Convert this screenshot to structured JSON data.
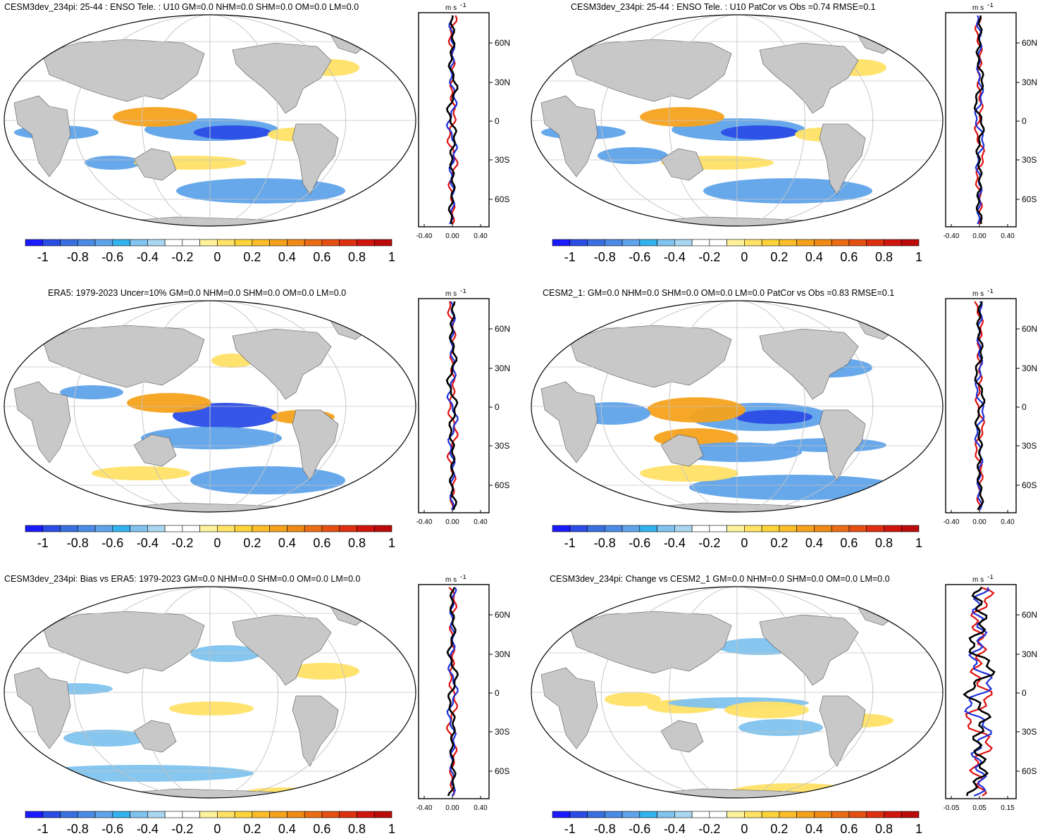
{
  "colorbar": {
    "colors": [
      "#1a1aff",
      "#2b4de6",
      "#3a6fe0",
      "#4b8be6",
      "#5fa3ea",
      "#32b2ee",
      "#7fc3ee",
      "#a9d6f0",
      "#ffffff",
      "#ffffff",
      "#fff29a",
      "#ffe266",
      "#fdd33b",
      "#fbbd2a",
      "#f5a21c",
      "#ef8a16",
      "#ea6c14",
      "#e44f12",
      "#de3010",
      "#d0140e",
      "#bb0a0a"
    ],
    "labels": [
      "-1",
      "-0.8",
      "-0.6",
      "-0.4",
      "-0.2",
      "0",
      "0.2",
      "0.4",
      "0.6",
      "0.8",
      "1"
    ]
  },
  "panels": [
    {
      "title": "CESM3dev_234pi: 25-44 : ENSO Tele. : U10 GM=0.0 NHM=0.0 SHM=0.0 OM=0.0 LM=0.0",
      "zonal": {
        "unit": "m s",
        "unit_exp": "-1",
        "xticks": [
          "-0.40",
          "0.00",
          "0.40"
        ],
        "yticks": [
          "60N",
          "30N",
          "0",
          "30S",
          "60S"
        ]
      }
    },
    {
      "title": "CESM3dev_234pi: 25-44 : ENSO Tele. : U10 PatCor vs Obs =0.74 RMSE=0.1",
      "zonal": {
        "unit": "m s",
        "unit_exp": "-1",
        "xticks": [
          "-0.40",
          "0.00",
          "0.40"
        ],
        "yticks": [
          "60N",
          "30N",
          "0",
          "30S",
          "60S"
        ]
      }
    },
    {
      "title": "ERA5: 1979-2023 Uncer=10% GM=0.0 NHM=0.0 SHM=0.0 OM=0.0 LM=0.0",
      "zonal": {
        "unit": "m s",
        "unit_exp": "-1",
        "xticks": [
          "-0.40",
          "0.00",
          "0.40"
        ],
        "yticks": [
          "60N",
          "30N",
          "0",
          "30S",
          "60S"
        ]
      }
    },
    {
      "title": "CESM2_1: GM=0.0 NHM=0.0 SHM=0.0 OM=0.0 LM=0.0 PatCor vs Obs =0.83 RMSE=0.1",
      "zonal": {
        "unit": "m s",
        "unit_exp": "-1",
        "xticks": [
          "-0.40",
          "0.00",
          "0.40"
        ],
        "yticks": [
          "60N",
          "30N",
          "0",
          "30S",
          "60S"
        ]
      }
    },
    {
      "title": "CESM3dev_234pi: Bias vs ERA5: 1979-2023 GM=0.0 NHM=0.0 SHM=0.0 OM=0.0 LM=0.0",
      "zonal": {
        "unit": "m s",
        "unit_exp": "-1",
        "xticks": [
          "-0.40",
          "0.00",
          "0.40"
        ],
        "yticks": [
          "60N",
          "30N",
          "0",
          "30S",
          "60S"
        ]
      }
    },
    {
      "title": "CESM3dev_234pi: Change vs CESM2_1 GM=0.0 NHM=0.0 SHM=0.0 OM=0.0 LM=0.0",
      "zonal": {
        "unit": "m s",
        "unit_exp": "-1",
        "xticks": [
          "-0.05",
          "0.05",
          "0.15"
        ],
        "yticks": [
          "60N",
          "30N",
          "0",
          "30S",
          "60S"
        ]
      }
    }
  ],
  "styles": {
    "land": "#c8c8c8",
    "grid": "#c4c4c4",
    "line_model": "#e01010",
    "line_obs": "#1b2fd8",
    "line_other": "#000000"
  }
}
